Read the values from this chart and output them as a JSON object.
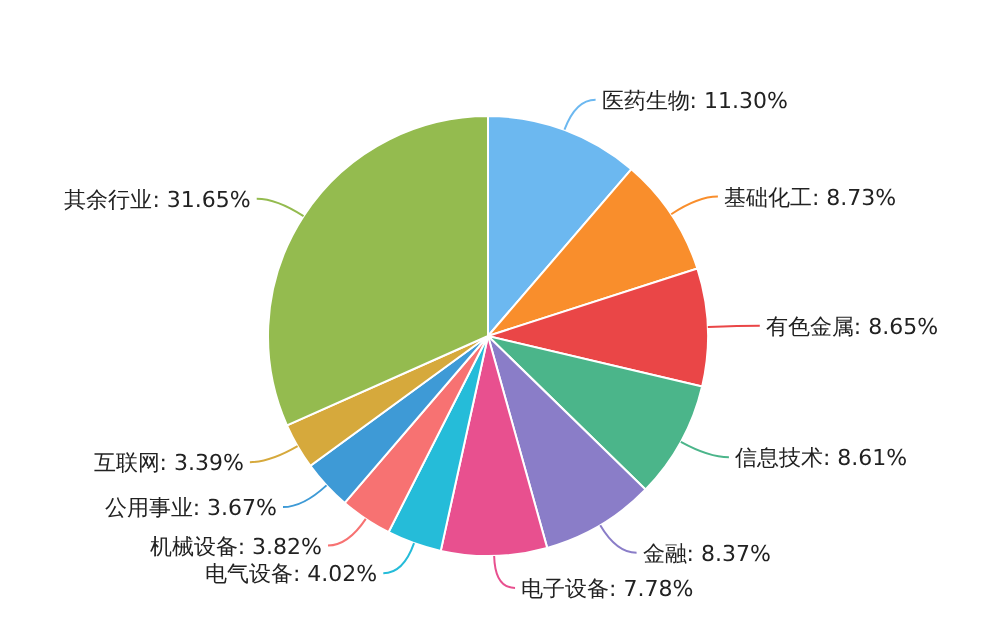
{
  "chart_data": {
    "type": "pie",
    "categories": [
      "医药生物",
      "基础化工",
      "有色金属",
      "信息技术",
      "金融",
      "电子设备",
      "电气设备",
      "机械设备",
      "公用事业",
      "互联网",
      "其余行业"
    ],
    "values": [
      11.3,
      8.73,
      8.65,
      8.61,
      8.37,
      7.78,
      4.02,
      3.82,
      3.67,
      3.39,
      31.65
    ],
    "value_labels": [
      "11.30%",
      "8.73%",
      "8.65%",
      "8.61%",
      "8.37%",
      "7.78%",
      "4.02%",
      "3.82%",
      "3.67%",
      "3.39%",
      "31.65%"
    ],
    "colors": [
      "#6cb8f0",
      "#f98e2c",
      "#ea4647",
      "#4bb58a",
      "#8a7dc8",
      "#e8508f",
      "#25bcd9",
      "#f77272",
      "#3e9ad6",
      "#d6a93c",
      "#94bb4f"
    ],
    "legend": false
  }
}
